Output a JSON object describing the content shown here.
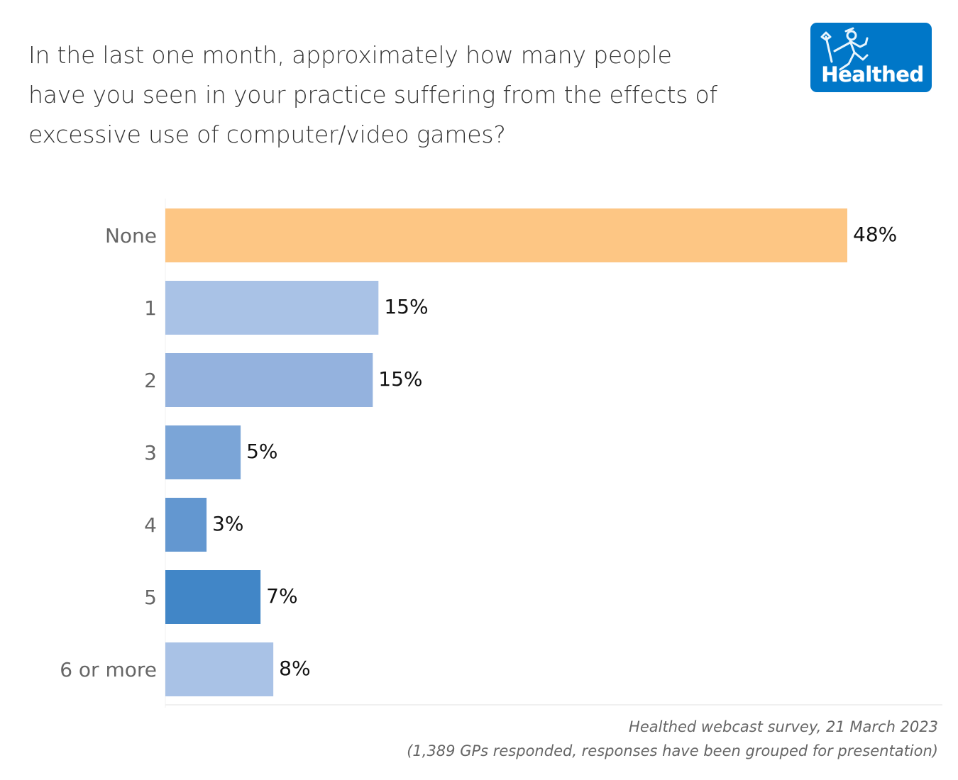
{
  "title_lines": [
    "In the last one month, approximately how many people",
    "have you seen in your practice suffering from the effects of",
    "excessive use of computer/video games?"
  ],
  "logo": {
    "text": "Healthed",
    "icon": "hermes-runner-icon",
    "color": "#0077c8"
  },
  "footer": {
    "source": "Healthed webcast survey, 21 March 2023",
    "note": "(1,389 GPs responded, responses have been grouped for presentation)"
  },
  "chart_data": {
    "type": "bar",
    "orientation": "horizontal",
    "title": "In the last one month, approximately how many people have you seen in your practice suffering from the effects of excessive use of computer/video games?",
    "xlabel": "",
    "ylabel": "",
    "categories": [
      "None",
      "1",
      "2",
      "3",
      "4",
      "5",
      "6 or more"
    ],
    "values": [
      48,
      15,
      14.6,
      5.3,
      2.9,
      6.7,
      7.6
    ],
    "data_labels": [
      "48%",
      "15%",
      "15%",
      "5%",
      "3%",
      "7%",
      "8%"
    ],
    "colors": [
      "#fdc684",
      "#a9c2e6",
      "#94b2de",
      "#7ba5d7",
      "#6397d0",
      "#4186c7",
      "#a9c2e6"
    ],
    "xlim": [
      0,
      48
    ],
    "unit": "%",
    "grid": false,
    "legend": "none"
  }
}
